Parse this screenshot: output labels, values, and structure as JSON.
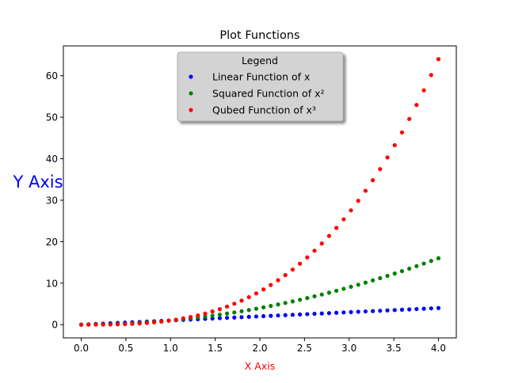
{
  "chart_data": {
    "type": "scatter",
    "title": "Plot Functions",
    "xlabel": "X Axis",
    "ylabel": "Y Axis",
    "xlabel_color": "#ff0000",
    "ylabel_color": "#0000ff",
    "xlim": [
      -0.2,
      4.2
    ],
    "ylim": [
      -3.2,
      67.2
    ],
    "xticks": [
      "0.0",
      "0.5",
      "1.0",
      "1.5",
      "2.0",
      "2.5",
      "3.0",
      "3.5",
      "4.0"
    ],
    "yticks": [
      "0",
      "10",
      "20",
      "30",
      "40",
      "50",
      "60"
    ],
    "x": [
      0.0,
      0.0816,
      0.1633,
      0.2449,
      0.3265,
      0.4082,
      0.4898,
      0.5714,
      0.6531,
      0.7347,
      0.8163,
      0.898,
      0.9796,
      1.0612,
      1.1429,
      1.2245,
      1.3061,
      1.3878,
      1.4694,
      1.551,
      1.6327,
      1.7143,
      1.7959,
      1.8776,
      1.9592,
      2.0408,
      2.1224,
      2.2041,
      2.2857,
      2.3673,
      2.449,
      2.5306,
      2.6122,
      2.6939,
      2.7755,
      2.8571,
      2.9388,
      3.0204,
      3.102,
      3.1837,
      3.2653,
      3.3469,
      3.4286,
      3.5102,
      3.5918,
      3.6735,
      3.7551,
      3.8367,
      3.9184,
      4.0
    ],
    "series": [
      {
        "name": "Linear Function of x",
        "color": "#0000ff",
        "fn": "linear",
        "values": [
          0.0,
          0.082,
          0.163,
          0.245,
          0.327,
          0.408,
          0.49,
          0.571,
          0.653,
          0.735,
          0.816,
          0.898,
          0.98,
          1.061,
          1.143,
          1.224,
          1.306,
          1.388,
          1.469,
          1.551,
          1.633,
          1.714,
          1.796,
          1.878,
          1.959,
          2.041,
          2.122,
          2.204,
          2.286,
          2.367,
          2.449,
          2.531,
          2.612,
          2.694,
          2.776,
          2.857,
          2.939,
          3.02,
          3.102,
          3.184,
          3.265,
          3.347,
          3.429,
          3.51,
          3.592,
          3.673,
          3.755,
          3.837,
          3.918,
          4.0
        ]
      },
      {
        "name": "Squared Function of x²",
        "color": "#008000",
        "fn": "square",
        "values": [
          0.0,
          0.007,
          0.027,
          0.06,
          0.107,
          0.167,
          0.24,
          0.327,
          0.427,
          0.54,
          0.666,
          0.806,
          0.96,
          1.126,
          1.306,
          1.499,
          1.706,
          1.926,
          2.159,
          2.406,
          2.666,
          2.939,
          3.225,
          3.525,
          3.839,
          4.165,
          4.505,
          4.858,
          5.224,
          5.604,
          5.998,
          6.404,
          6.824,
          7.257,
          7.703,
          8.163,
          8.637,
          9.123,
          9.623,
          10.136,
          10.662,
          11.202,
          11.755,
          12.322,
          12.901,
          13.495,
          14.101,
          14.721,
          15.354,
          16.0
        ]
      },
      {
        "name": "Qubed Function of x³",
        "color": "#ff0000",
        "fn": "cube",
        "values": [
          0.0,
          0.001,
          0.004,
          0.015,
          0.035,
          0.068,
          0.118,
          0.187,
          0.279,
          0.397,
          0.544,
          0.724,
          0.94,
          1.195,
          1.493,
          1.836,
          2.228,
          2.673,
          3.173,
          3.732,
          4.352,
          5.038,
          5.792,
          6.619,
          7.521,
          8.501,
          9.562,
          10.708,
          11.942,
          13.267,
          14.688,
          16.207,
          17.826,
          19.549,
          21.381,
          23.323,
          25.38,
          27.555,
          29.851,
          32.271,
          34.819,
          37.497,
          40.309,
          43.258,
          46.349,
          49.583,
          52.964,
          56.495,
          60.18,
          64.0
        ]
      }
    ],
    "legend": {
      "title": "Legend",
      "placement": "upper-center",
      "background": "#d3d3d3"
    },
    "grid": false
  }
}
